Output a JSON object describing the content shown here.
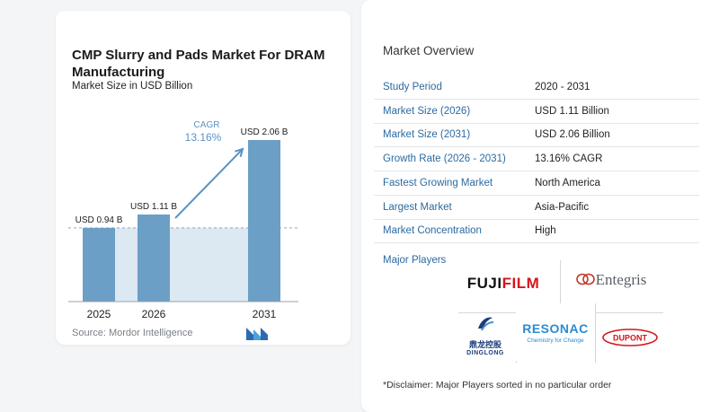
{
  "chart": {
    "title": "CMP Slurry and Pads Market For DRAM Manufacturing",
    "subtitle": "Market Size in USD Billion",
    "source": "Source:  Mordor Intelligence",
    "cagr_label": "CAGR",
    "cagr_value": "13.16%",
    "colors": {
      "bar": "#6b9fc6",
      "band": "#dce8f2",
      "arrow": "#5b93c4",
      "cagr": "#5b93c4"
    }
  },
  "chart_data": {
    "type": "bar",
    "title": "CMP Slurry and Pads Market For DRAM Manufacturing",
    "subtitle": "Market Size in USD Billion",
    "categories": [
      "2025",
      "2026",
      "2031"
    ],
    "values": [
      0.94,
      1.11,
      2.06
    ],
    "data_labels": [
      "USD 0.94 B",
      "USD 1.11 B",
      "USD 2.06 B"
    ],
    "annotation": "CAGR 13.16%",
    "xlabel": "",
    "ylabel": "",
    "grid": false
  },
  "overview": {
    "title": "Market Overview",
    "rows": [
      {
        "label": "Study Period",
        "value": "2020 - 2031"
      },
      {
        "label": "Market Size (2026)",
        "value": "USD 1.11 Billion"
      },
      {
        "label": "Market Size (2031)",
        "value": "USD 2.06 Billion"
      },
      {
        "label": "Growth Rate (2026 - 2031)",
        "value": "13.16% CAGR"
      },
      {
        "label": "Fastest Growing Market",
        "value": "North America"
      },
      {
        "label": "Largest Market",
        "value": "Asia-Pacific"
      },
      {
        "label": "Market Concentration",
        "value": "High"
      }
    ],
    "players_title": "Major Players",
    "players": {
      "fujifilm_a": "FUJI",
      "fujifilm_b": "FILM",
      "entegris": "Entegris",
      "resonac": "RESONAC",
      "resonac_sub": "Chemistry for Change",
      "dinglong_cn": "鼎龙控股",
      "dinglong_en": "DINGLONG",
      "dupont": "DUPONT"
    },
    "disclaimer": "*Disclaimer: Major Players sorted in no particular order"
  }
}
